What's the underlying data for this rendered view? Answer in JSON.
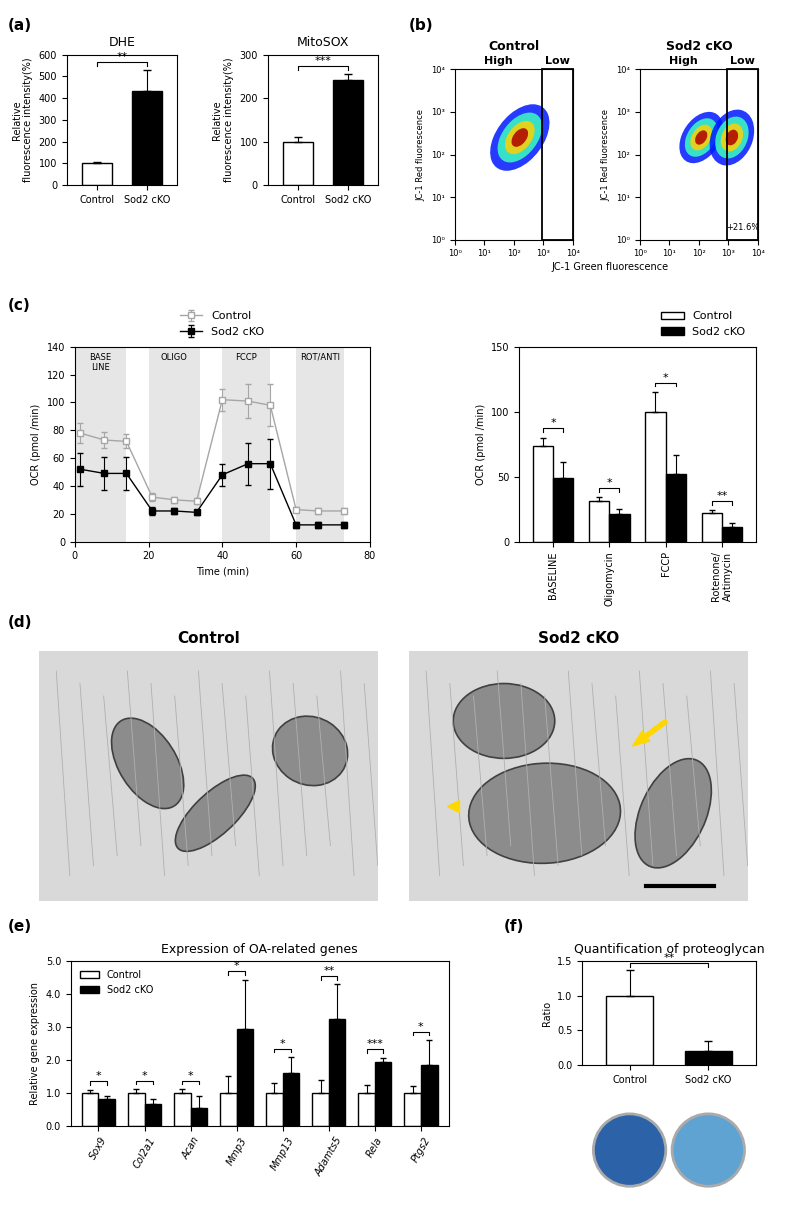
{
  "chart_data": [
    {
      "type": "bar",
      "panel": "(a)",
      "title": "DHE",
      "ylabel": "Relative\nfluorescence intensity(%)",
      "categories": [
        "Control",
        "Sod2 cKO"
      ],
      "values": [
        100,
        435
      ],
      "errors": [
        8,
        95
      ],
      "colors": [
        "#ffffff",
        "#000000"
      ],
      "ylim": [
        0,
        600
      ],
      "yticks": [
        0,
        100,
        200,
        300,
        400,
        500,
        600
      ],
      "significance": "**"
    },
    {
      "type": "bar",
      "title": "MitoSOX",
      "ylabel": "Relative\nfluorescence intensity(%)",
      "categories": [
        "Control",
        "Sod2 cKO"
      ],
      "values": [
        100,
        243
      ],
      "errors": [
        10,
        12
      ],
      "colors": [
        "#ffffff",
        "#000000"
      ],
      "ylim": [
        0,
        300
      ],
      "yticks": [
        0,
        100,
        200,
        300
      ],
      "significance": "***"
    },
    {
      "type": "flow",
      "panel": "(b)",
      "titles": [
        "Control",
        "Sod2 cKO"
      ],
      "gate_labels": [
        "High",
        "Low"
      ],
      "gate": [
        900,
        10000
      ],
      "xlabel": "JC-1 Green fluorescence",
      "ylabel": "JC-1 Red fluorescence",
      "log": true,
      "xlim": [
        1,
        10000
      ],
      "ylim": [
        1,
        10000
      ],
      "xticks": [
        {
          "value": 1,
          "label": "10⁰"
        },
        {
          "value": 10,
          "label": "10¹"
        },
        {
          "value": 100,
          "label": "10²"
        },
        {
          "value": 1000,
          "label": "10³"
        },
        {
          "value": 10000,
          "label": "10⁴"
        }
      ],
      "yticks": [
        {
          "value": 1,
          "label": "10⁰"
        },
        {
          "value": 10,
          "label": "10¹"
        },
        {
          "value": 100,
          "label": "10²"
        },
        {
          "value": 1000,
          "label": "10³"
        },
        {
          "value": 10000,
          "label": "10⁴"
        }
      ],
      "annotation": "+21.6%"
    },
    {
      "type": "line",
      "panel": "(c)",
      "x": [
        1.5,
        8,
        14,
        21,
        27,
        33,
        40,
        47,
        53,
        60,
        66,
        73
      ],
      "series": [
        {
          "name": "Control",
          "color": "#a6a6a6",
          "marker": "open square",
          "values": [
            78,
            73,
            72,
            32,
            30,
            29,
            102,
            101,
            98,
            23,
            22,
            22
          ],
          "errors": [
            7,
            6,
            5,
            3,
            2,
            2,
            8,
            12,
            15,
            2,
            2,
            2
          ]
        },
        {
          "name": "Sod2 cKO",
          "color": "#000000",
          "marker": "square",
          "values": [
            52,
            49,
            49,
            22,
            22,
            21,
            48,
            56,
            56,
            12,
            12,
            12
          ],
          "errors": [
            12,
            12,
            12,
            3,
            2,
            2,
            8,
            15,
            18,
            2,
            2,
            2
          ]
        }
      ],
      "xlabel": "Time (min)",
      "ylabel": "OCR (pmol /min)",
      "xlim": [
        0,
        80
      ],
      "xticks": [
        0,
        20,
        40,
        60,
        80
      ],
      "ylim": [
        0,
        140
      ],
      "yticks": [
        0,
        20,
        40,
        60,
        80,
        100,
        120,
        140
      ],
      "phases": [
        {
          "label": "BASE\nLINE",
          "range": [
            0,
            14
          ]
        },
        {
          "label": "OLIGO",
          "range": [
            20,
            34
          ]
        },
        {
          "label": "FCCP",
          "range": [
            40,
            53
          ]
        },
        {
          "label": "ROT/ANTI",
          "range": [
            60,
            73
          ]
        }
      ],
      "legend": "top"
    },
    {
      "type": "bar",
      "categories": [
        "BASELINE",
        "Oligomycin",
        "FCCP",
        "Rotenone/\nAntimycin"
      ],
      "series": [
        {
          "name": "Control",
          "color": "#ffffff",
          "values": [
            74,
            31,
            100,
            22
          ],
          "errors": [
            6,
            3,
            15,
            2
          ]
        },
        {
          "name": "Sod2 cKO",
          "color": "#000000",
          "values": [
            49,
            21,
            52,
            11
          ],
          "errors": [
            12,
            4,
            15,
            3
          ]
        }
      ],
      "ylabel": "OCR (pmol /min)",
      "ylim": [
        0,
        150
      ],
      "yticks": [
        0,
        50,
        100,
        150
      ],
      "significance": [
        "*",
        "*",
        "*",
        "**"
      ],
      "legend": "top"
    },
    {
      "type": "image",
      "panel": "(d)",
      "titles": [
        "Control",
        "Sod2 cKO"
      ]
    },
    {
      "type": "bar",
      "panel": "(e)",
      "title": "Expression of OA-related genes",
      "ylabel": "Relative gene expression",
      "categories": [
        "Sox9",
        "Col2a1",
        "Acan",
        "Mmp3",
        "Mmp13",
        "Adamts5",
        "Rela",
        "Ptgs2"
      ],
      "series": [
        {
          "name": "Control",
          "color": "#ffffff",
          "values": [
            1.0,
            1.0,
            1.0,
            1.0,
            1.0,
            1.0,
            1.0,
            1.0
          ],
          "errors": [
            0.1,
            0.12,
            0.12,
            0.5,
            0.3,
            0.4,
            0.25,
            0.2
          ]
        },
        {
          "name": "Sod2 cKO",
          "color": "#000000",
          "values": [
            0.8,
            0.65,
            0.55,
            2.95,
            1.6,
            3.25,
            1.95,
            1.85
          ],
          "errors": [
            0.1,
            0.15,
            0.35,
            1.5,
            0.5,
            1.05,
            0.12,
            0.75
          ]
        }
      ],
      "ylim": [
        0,
        5
      ],
      "yticks": [
        {
          "value": 0,
          "label": "0.0"
        },
        {
          "value": 1,
          "label": "1.0"
        },
        {
          "value": 2,
          "label": "2.0"
        },
        {
          "value": 3,
          "label": "3.0"
        },
        {
          "value": 4,
          "label": "4.0"
        },
        {
          "value": 5,
          "label": "5.0"
        }
      ],
      "significance": [
        "*",
        "*",
        "*",
        "*",
        "*",
        "**",
        "***",
        "*"
      ],
      "legend": "upper left"
    },
    {
      "type": "bar",
      "panel": "(f)",
      "title": "Quantification of proteoglycan",
      "ylabel": "Ratio",
      "categories": [
        "Control",
        "Sod2 cKO"
      ],
      "values": [
        1.0,
        0.2
      ],
      "errors": [
        0.38,
        0.15
      ],
      "colors": [
        "#ffffff",
        "#000000"
      ],
      "ylim": [
        0,
        1.5
      ],
      "yticks": [
        {
          "value": 0,
          "label": "0.0"
        },
        {
          "value": 0.5,
          "label": "0.5"
        },
        {
          "value": 1.0,
          "label": "1.0"
        },
        {
          "value": 1.5,
          "label": "1.5"
        }
      ],
      "significance": "**"
    }
  ]
}
